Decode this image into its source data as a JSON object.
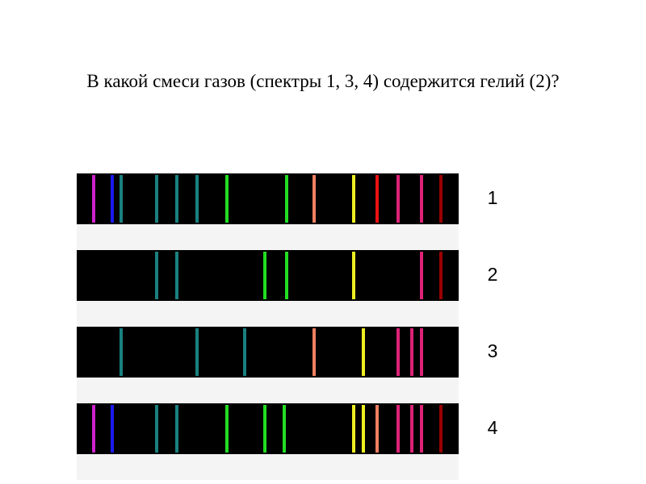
{
  "title": "В какой смеси газов (спектры 1, 3, 4) содержится гелий (2)?",
  "spectrum_labels": [
    "1",
    "2",
    "3",
    "4"
  ]
}
